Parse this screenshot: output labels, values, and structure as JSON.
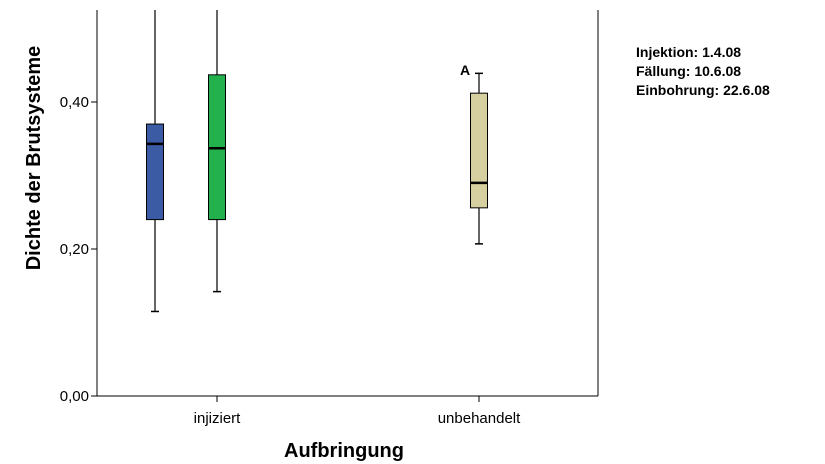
{
  "chart_data": {
    "type": "boxplot",
    "xlabel": "Aufbringung",
    "ylabel": "Dichte der Brutsysteme",
    "ylim": [
      0,
      0.52
    ],
    "yticks": [
      {
        "value": 0.0,
        "label": "0,00"
      },
      {
        "value": 0.2,
        "label": "0,20"
      },
      {
        "value": 0.4,
        "label": "0,40"
      }
    ],
    "categories": [
      "injiziert",
      "unbehandelt"
    ],
    "boxes": [
      {
        "category": "injiziert",
        "color": "#3b5ba5",
        "min": 0.115,
        "q1": 0.24,
        "median": 0.343,
        "q3": 0.37,
        "max": 0.52,
        "max_clipped": true
      },
      {
        "category": "injiziert",
        "color": "#22b14c",
        "min": 0.142,
        "q1": 0.24,
        "median": 0.337,
        "q3": 0.437,
        "max": 0.52,
        "max_clipped": true
      },
      {
        "category": "unbehandelt",
        "color": "#d6cf9f",
        "min": 0.207,
        "q1": 0.256,
        "median": 0.29,
        "q3": 0.412,
        "max": 0.439,
        "max_clipped": false
      }
    ],
    "annotations": [
      {
        "text": "A",
        "x": "unbehandelt",
        "y": 0.44
      }
    ],
    "notes": [
      "Injektion: 1.4.08",
      "Fällung: 10.6.08",
      "Einbohrung: 22.6.08"
    ],
    "grid": false,
    "legend": "none"
  }
}
